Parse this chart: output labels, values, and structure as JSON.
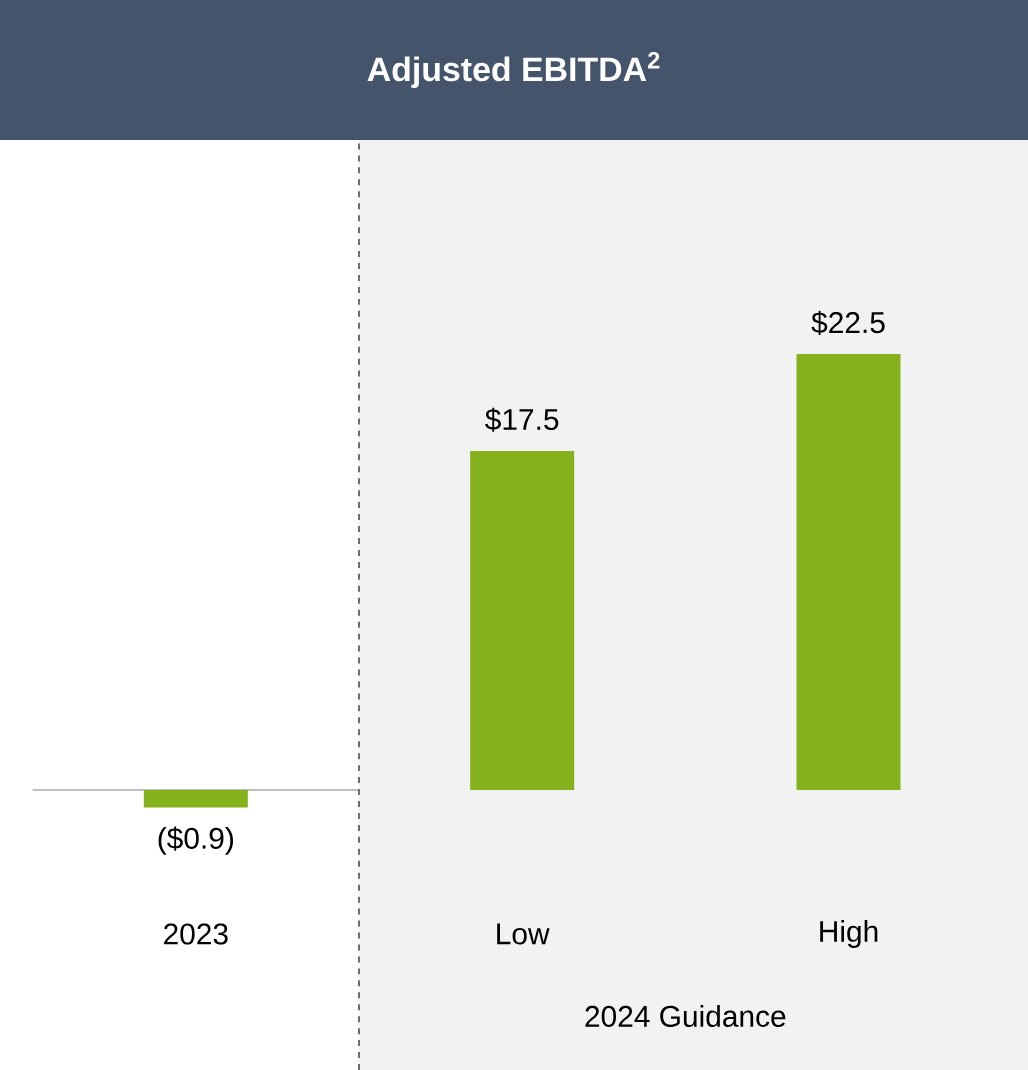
{
  "chart_data": {
    "type": "bar",
    "title": "Adjusted EBITDA$^{2}$",
    "categories": [
      "2023",
      "Low",
      "High"
    ],
    "values": [
      -0.9,
      17.5,
      22.5
    ],
    "color": "#84b11c",
    "value_labels": [
      "($0.9)",
      "$17.5",
      "$22.5"
    ],
    "bands": [
      {
        "axis": "x",
        "from": "Low",
        "to": "High",
        "label": "2024 Guidance",
        "color": "#f2f2f2"
      }
    ]
  }
}
